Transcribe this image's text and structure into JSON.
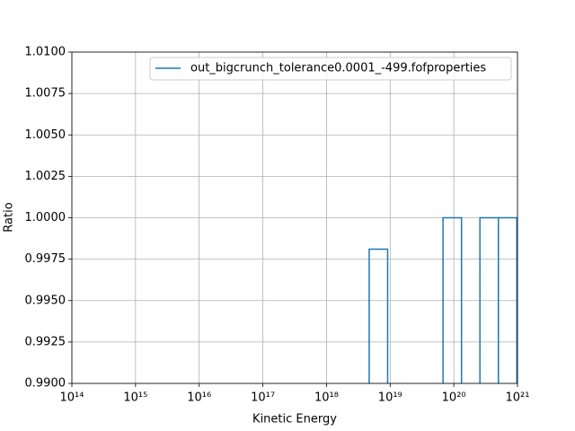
{
  "chart_data": {
    "type": "step",
    "xlabel": "Kinetic Energy",
    "ylabel": "Ratio",
    "xscale": "log",
    "grid": true,
    "legend": "upper right",
    "xlim": [
      100000000000000.0,
      1e+21
    ],
    "ylim": [
      0.99,
      1.01
    ],
    "xticks": [
      {
        "value": 100000000000000.0,
        "label": "10¹⁴"
      },
      {
        "value": 1000000000000000.0,
        "label": "10¹⁵"
      },
      {
        "value": 1e+16,
        "label": "10¹⁶"
      },
      {
        "value": 1e+17,
        "label": "10¹⁷"
      },
      {
        "value": 1e+18,
        "label": "10¹⁸"
      },
      {
        "value": 1e+19,
        "label": "10¹⁹"
      },
      {
        "value": 1e+20,
        "label": "10²⁰"
      },
      {
        "value": 1e+21,
        "label": "10²¹"
      }
    ],
    "yticks": [
      {
        "value": 0.99,
        "label": "0.9900"
      },
      {
        "value": 0.9925,
        "label": "0.9925"
      },
      {
        "value": 0.995,
        "label": "0.9950"
      },
      {
        "value": 0.9975,
        "label": "0.9975"
      },
      {
        "value": 1,
        "label": "1.0000"
      },
      {
        "value": 1.0025,
        "label": "1.0025"
      },
      {
        "value": 1.005,
        "label": "1.0050"
      },
      {
        "value": 1.0075,
        "label": "1.0075"
      },
      {
        "value": 1.01,
        "label": "1.0100"
      }
    ],
    "series": [
      {
        "name": "out_bigcrunch_tolerance0.0001_-499.fofproperties",
        "color": "#1f77b4",
        "bins": [
          4.68e+18,
          9.12e+18,
          1.78e+19,
          3.47e+19,
          6.76e+19,
          1.32e+20,
          2.57e+20,
          5.01e+20,
          9.77e+20
        ],
        "values": [
          0.9981,
          null,
          null,
          null,
          1.0,
          null,
          1.0,
          1.0
        ]
      }
    ]
  }
}
